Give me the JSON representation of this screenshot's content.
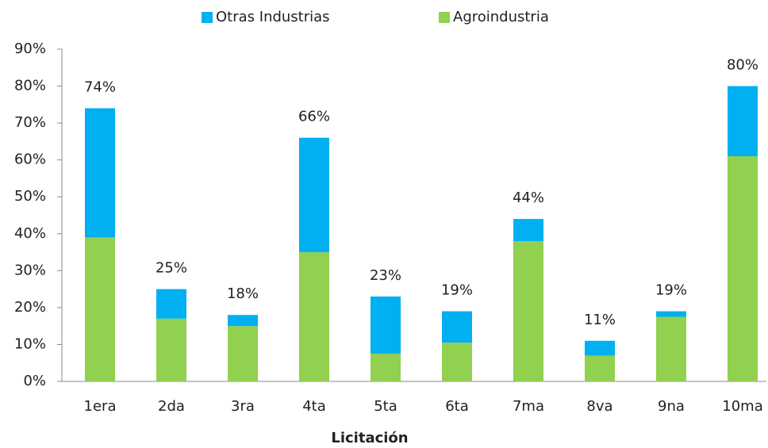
{
  "chart_data": {
    "type": "stacked_bar",
    "x_label": "Licitación",
    "categories": [
      "1era",
      "2da",
      "3ra",
      "4ta",
      "5ta",
      "6ta",
      "7ma",
      "8va",
      "9na",
      "10ma"
    ],
    "series": [
      {
        "name": "Otras Industrias",
        "color": "#00b0f0",
        "values": [
          35,
          8,
          3,
          31,
          15.5,
          8.5,
          6,
          4,
          1.5,
          19
        ]
      },
      {
        "name": "Agroindustria",
        "color": "#92d050",
        "values": [
          39,
          17,
          15,
          35,
          7.5,
          10.5,
          38,
          7,
          17.5,
          61
        ]
      }
    ],
    "totals": [
      74,
      25,
      18,
      66,
      23,
      19,
      44,
      11,
      19,
      80
    ],
    "total_labels": [
      "74%",
      "25%",
      "18%",
      "66%",
      "23%",
      "19%",
      "44%",
      "11%",
      "19%",
      "80%"
    ],
    "ylim": [
      0,
      90
    ],
    "yticks": [
      {
        "value": 0,
        "label": "0%"
      },
      {
        "value": 10,
        "label": "10%"
      },
      {
        "value": 20,
        "label": "20%"
      },
      {
        "value": 30,
        "label": "30%"
      },
      {
        "value": 40,
        "label": "40%"
      },
      {
        "value": 50,
        "label": "50%"
      },
      {
        "value": 60,
        "label": "60%"
      },
      {
        "value": 70,
        "label": "70%"
      },
      {
        "value": 80,
        "label": "80%"
      },
      {
        "value": 90,
        "label": "90%"
      }
    ],
    "legend": "top"
  }
}
